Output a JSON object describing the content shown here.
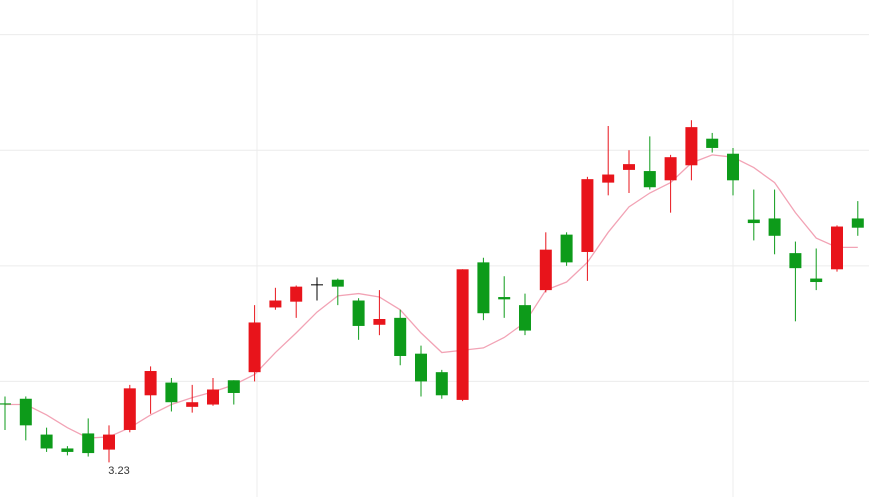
{
  "chart_data": {
    "type": "candlestick",
    "open": [
      3.281,
      3.285,
      3.254,
      3.242,
      3.255,
      3.241,
      3.258,
      3.288,
      3.299,
      3.278,
      3.28,
      3.301,
      3.308,
      3.364,
      3.369,
      3.384,
      3.388,
      3.37,
      3.349,
      3.355,
      3.324,
      3.308,
      3.284,
      3.403,
      3.373,
      3.366,
      3.379,
      3.427,
      3.412,
      3.472,
      3.483,
      3.482,
      3.474,
      3.487,
      3.51,
      3.497,
      3.44,
      3.441,
      3.411,
      3.389,
      3.397,
      3.441
    ],
    "high": [
      3.287,
      3.287,
      3.26,
      3.244,
      3.268,
      3.262,
      3.297,
      3.313,
      3.303,
      3.297,
      3.303,
      3.301,
      3.366,
      3.381,
      3.383,
      3.39,
      3.389,
      3.372,
      3.379,
      3.362,
      3.331,
      3.31,
      3.397,
      3.407,
      3.391,
      3.376,
      3.429,
      3.429,
      3.477,
      3.521,
      3.5,
      3.512,
      3.496,
      3.526,
      3.515,
      3.502,
      3.466,
      3.466,
      3.421,
      3.415,
      3.435,
      3.456
    ],
    "low": [
      3.258,
      3.249,
      3.239,
      3.236,
      3.235,
      3.23,
      3.256,
      3.272,
      3.274,
      3.273,
      3.279,
      3.28,
      3.3,
      3.362,
      3.355,
      3.37,
      3.366,
      3.336,
      3.34,
      3.314,
      3.287,
      3.285,
      3.283,
      3.353,
      3.355,
      3.34,
      3.377,
      3.4,
      3.387,
      3.461,
      3.463,
      3.466,
      3.446,
      3.474,
      3.498,
      3.461,
      3.422,
      3.41,
      3.352,
      3.379,
      3.395,
      3.426
    ],
    "close": [
      3.28,
      3.262,
      3.242,
      3.239,
      3.238,
      3.254,
      3.294,
      3.309,
      3.282,
      3.282,
      3.293,
      3.29,
      3.351,
      3.37,
      3.382,
      3.384,
      3.382,
      3.348,
      3.354,
      3.322,
      3.3,
      3.288,
      3.397,
      3.359,
      3.371,
      3.344,
      3.414,
      3.403,
      3.475,
      3.479,
      3.488,
      3.468,
      3.494,
      3.52,
      3.502,
      3.474,
      3.437,
      3.426,
      3.398,
      3.386,
      3.434,
      3.433
    ],
    "up_color": "#e8141b",
    "down_color": "#0d9b1a",
    "flat_color": "#000000",
    "ma": {
      "color": "#f2a3b5",
      "values": [
        3.28,
        3.28,
        3.271,
        3.26,
        3.251,
        3.252,
        3.26,
        3.271,
        3.28,
        3.286,
        3.291,
        3.297,
        3.306,
        3.325,
        3.342,
        3.36,
        3.374,
        3.376,
        3.373,
        3.362,
        3.342,
        3.325,
        3.327,
        3.329,
        3.338,
        3.351,
        3.379,
        3.386,
        3.403,
        3.429,
        3.451,
        3.463,
        3.472,
        3.489,
        3.496,
        3.494,
        3.485,
        3.472,
        3.446,
        3.424,
        3.416,
        3.416
      ]
    },
    "ylim": [
      3.2,
      3.63
    ],
    "yticks": [
      3.3,
      3.4,
      3.5,
      3.6
    ],
    "grid": true
  }
}
